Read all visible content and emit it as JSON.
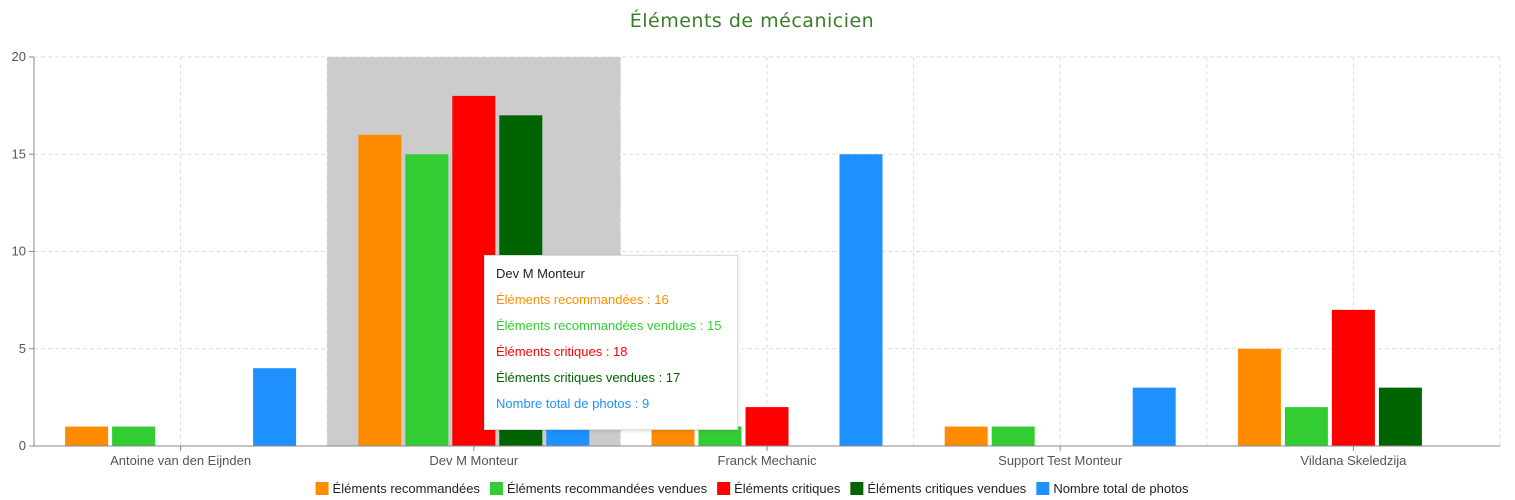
{
  "chart_data": {
    "type": "bar",
    "title": "Éléments de mécanicien",
    "categories": [
      "Antoine van den Eijnden",
      "Dev M Monteur",
      "Franck Mechanic",
      "Support Test Monteur",
      "Vildana Skeledzija"
    ],
    "ylim": [
      0,
      20
    ],
    "yticks": [
      0,
      5,
      10,
      15,
      20
    ],
    "grid": true,
    "legend_position": "bottom",
    "highlighted_category": "Dev M Monteur",
    "series": [
      {
        "name": "Éléments recommandées",
        "color": "#ff8c00",
        "values": [
          1,
          16,
          1,
          1,
          5
        ]
      },
      {
        "name": "Éléments recommandées vendues",
        "color": "#32cd32",
        "values": [
          1,
          15,
          1,
          1,
          2
        ]
      },
      {
        "name": "Éléments critiques",
        "color": "#ff0000",
        "values": [
          0,
          18,
          2,
          0,
          7
        ]
      },
      {
        "name": "Éléments critiques vendues",
        "color": "#006400",
        "values": [
          0,
          17,
          0,
          0,
          3
        ]
      },
      {
        "name": "Nombre total de photos",
        "color": "#1e90ff",
        "values": [
          4,
          9,
          15,
          3,
          0
        ]
      }
    ]
  },
  "tooltip": {
    "title": "Dev M Monteur",
    "rows": [
      {
        "text": "Éléments recommandées : 16",
        "color": "#ff8c00"
      },
      {
        "text": "Éléments recommandées vendues : 15",
        "color": "#32cd32"
      },
      {
        "text": "Éléments critiques : 18",
        "color": "#ff0000"
      },
      {
        "text": "Éléments critiques vendues : 17",
        "color": "#006400"
      },
      {
        "text": "Nombre total de photos : 9",
        "color": "#1e90ff"
      }
    ]
  }
}
